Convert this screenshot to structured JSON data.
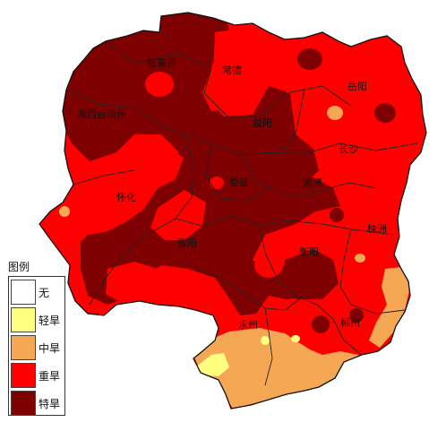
{
  "map": {
    "cities": [
      {
        "id": "zhangjiajie",
        "name": "张家界"
      },
      {
        "id": "changde",
        "name": "常德"
      },
      {
        "id": "yueyang",
        "name": "岳阳"
      },
      {
        "id": "xiangxi",
        "name": "湘西自治州"
      },
      {
        "id": "yiyang",
        "name": "益阳"
      },
      {
        "id": "changsha",
        "name": "长沙"
      },
      {
        "id": "huaihua",
        "name": "怀化"
      },
      {
        "id": "loudi",
        "name": "娄底"
      },
      {
        "id": "xiangtan",
        "name": "湘潭"
      },
      {
        "id": "zhuzhou",
        "name": "株洲"
      },
      {
        "id": "shaoyang",
        "name": "邵阳"
      },
      {
        "id": "hengyang",
        "name": "衡阳"
      },
      {
        "id": "yongzhou",
        "name": "永州"
      },
      {
        "id": "chenzhou",
        "name": "郴州"
      }
    ]
  },
  "legend": {
    "title": "图例",
    "items": [
      {
        "label": "无",
        "color": "#ffffff"
      },
      {
        "label": "轻旱",
        "color": "#ffff80"
      },
      {
        "label": "中旱",
        "color": "#f5a754"
      },
      {
        "label": "重旱",
        "color": "#ff0000"
      },
      {
        "label": "特旱",
        "color": "#7f0000"
      }
    ]
  }
}
